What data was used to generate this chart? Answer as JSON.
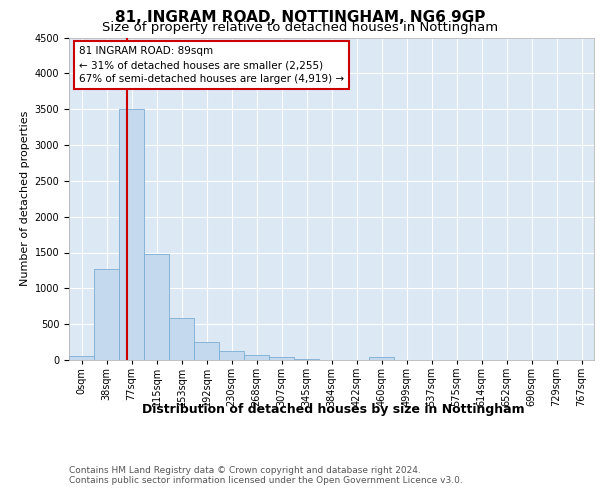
{
  "title1": "81, INGRAM ROAD, NOTTINGHAM, NG6 9GP",
  "title2": "Size of property relative to detached houses in Nottingham",
  "xlabel": "Distribution of detached houses by size in Nottingham",
  "ylabel": "Number of detached properties",
  "footer1": "Contains HM Land Registry data © Crown copyright and database right 2024.",
  "footer2": "Contains public sector information licensed under the Open Government Licence v3.0.",
  "bin_labels": [
    "0sqm",
    "38sqm",
    "77sqm",
    "115sqm",
    "153sqm",
    "192sqm",
    "230sqm",
    "268sqm",
    "307sqm",
    "345sqm",
    "384sqm",
    "422sqm",
    "460sqm",
    "499sqm",
    "537sqm",
    "575sqm",
    "614sqm",
    "652sqm",
    "690sqm",
    "729sqm",
    "767sqm"
  ],
  "bar_values": [
    50,
    1270,
    3500,
    1480,
    580,
    250,
    130,
    75,
    35,
    10,
    0,
    0,
    40,
    0,
    0,
    0,
    0,
    0,
    0,
    0,
    0
  ],
  "bar_color": "#c5d9ee",
  "bar_edge_color": "#7aadd4",
  "vline_x": 2.3,
  "vline_color": "#cc0000",
  "annotation_text": "81 INGRAM ROAD: 89sqm\n← 31% of detached houses are smaller (2,255)\n67% of semi-detached houses are larger (4,919) →",
  "annotation_box_edgecolor": "#cc0000",
  "ylim": [
    0,
    4500
  ],
  "yticks": [
    0,
    500,
    1000,
    1500,
    2000,
    2500,
    3000,
    3500,
    4000,
    4500
  ],
  "fig_bg_color": "#ffffff",
  "plot_bg_color": "#dce9f5",
  "grid_color": "#ffffff",
  "title1_fontsize": 11,
  "title2_fontsize": 9.5,
  "tick_fontsize": 7,
  "ylabel_fontsize": 8,
  "xlabel_fontsize": 9,
  "footer_fontsize": 6.5,
  "annotation_fontsize": 7.5
}
